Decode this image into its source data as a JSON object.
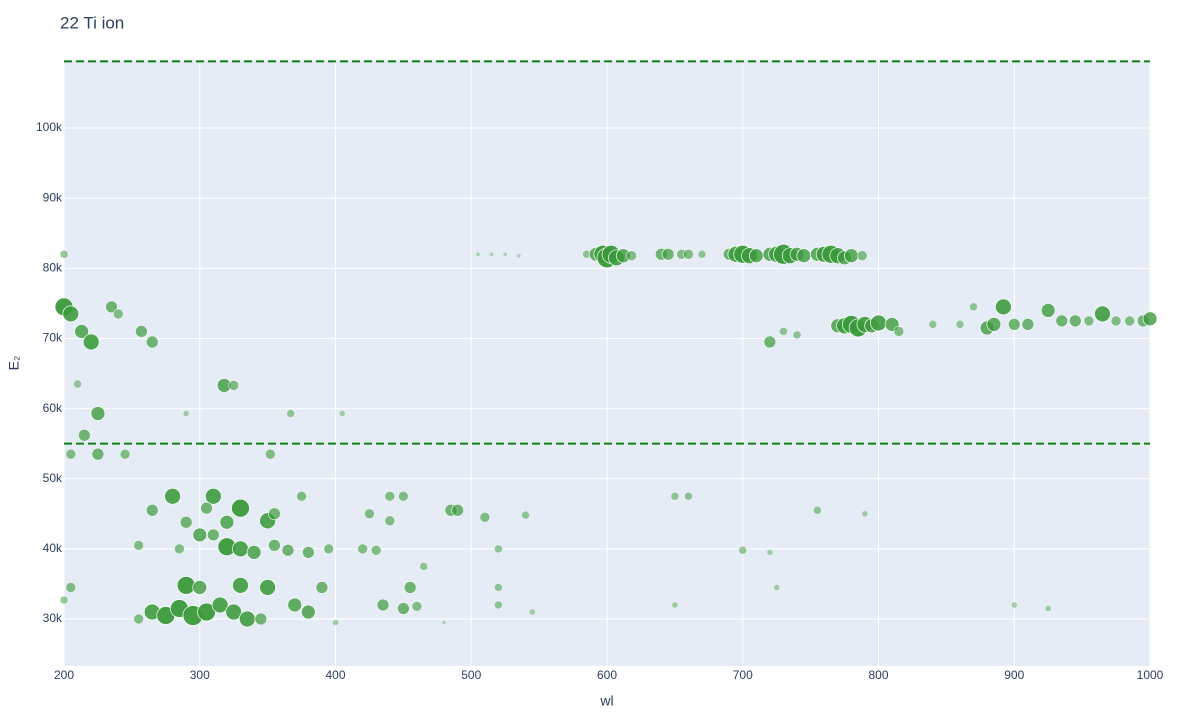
{
  "chart_data": {
    "type": "scatter",
    "title": "22 Ti ion",
    "x_label": "wl",
    "y_label": "E₂",
    "color": "#3a9a3a",
    "hlines": [
      109500,
      55000
    ],
    "hline_color": "#138013",
    "grid": true,
    "xlim": [
      200,
      1000
    ],
    "ylim": [
      23300,
      109700
    ],
    "xticks": [
      200,
      300,
      400,
      500,
      600,
      700,
      800,
      900,
      1000
    ],
    "yticks": [
      {
        "value": 30000,
        "label": "30k"
      },
      {
        "value": 40000,
        "label": "40k"
      },
      {
        "value": 50000,
        "label": "50k"
      },
      {
        "value": 60000,
        "label": "60k"
      },
      {
        "value": 70000,
        "label": "70k"
      },
      {
        "value": 80000,
        "label": "80k"
      },
      {
        "value": 90000,
        "label": "90k"
      },
      {
        "value": 100000,
        "label": "100k"
      }
    ],
    "x": [
      585,
      592,
      597,
      600,
      603,
      607,
      612,
      618,
      640,
      645,
      655,
      660,
      670,
      690,
      695,
      700,
      705,
      710,
      720,
      725,
      730,
      735,
      740,
      745,
      755,
      760,
      765,
      770,
      775,
      780,
      788,
      505,
      515,
      525,
      535,
      770,
      775,
      780,
      785,
      790,
      795,
      800,
      810,
      815,
      840,
      860,
      870,
      880,
      885,
      892,
      900,
      910,
      925,
      935,
      945,
      955,
      965,
      975,
      985,
      995,
      1000,
      720,
      730,
      740,
      200,
      205,
      213,
      220,
      235,
      240,
      257,
      265,
      210,
      318,
      325,
      225,
      290,
      367,
      405,
      215,
      200,
      205,
      225,
      245,
      352,
      280,
      310,
      375,
      440,
      450,
      330,
      305,
      265,
      290,
      320,
      350,
      355,
      425,
      440,
      485,
      490,
      510,
      540,
      650,
      660,
      755,
      790,
      300,
      310,
      320,
      330,
      340,
      355,
      365,
      380,
      395,
      420,
      430,
      255,
      285,
      520,
      700,
      720,
      465,
      290,
      300,
      330,
      350,
      390,
      455,
      520,
      725,
      265,
      275,
      285,
      295,
      305,
      315,
      325,
      335,
      345,
      370,
      380,
      435,
      450,
      460,
      520,
      545,
      650,
      900,
      925,
      205,
      200,
      255,
      400,
      480
    ],
    "values": [
      82000,
      82000,
      82000,
      81500,
      82000,
      81500,
      81800,
      81800,
      82000,
      82000,
      82000,
      82000,
      82000,
      82000,
      82000,
      82000,
      81800,
      81800,
      82000,
      82000,
      82000,
      81800,
      82000,
      81800,
      82000,
      82000,
      82000,
      81800,
      81500,
      81800,
      81800,
      82000,
      82000,
      82000,
      81800,
      71800,
      71800,
      72000,
      71500,
      72000,
      71800,
      72200,
      72000,
      71000,
      72000,
      72000,
      74500,
      71500,
      72000,
      74500,
      72000,
      72000,
      74000,
      72500,
      72500,
      72500,
      73500,
      72500,
      72500,
      72500,
      72800,
      69500,
      71000,
      70500,
      74500,
      73500,
      71000,
      69500,
      74500,
      73500,
      71000,
      69500,
      63500,
      63300,
      63300,
      59300,
      59300,
      59300,
      59300,
      56200,
      82000,
      53500,
      53500,
      53500,
      53500,
      47500,
      47500,
      47500,
      47500,
      47500,
      45800,
      45800,
      45500,
      43800,
      43800,
      44000,
      45000,
      45000,
      44000,
      45500,
      45500,
      44500,
      44800,
      47500,
      47500,
      45500,
      45000,
      42000,
      42000,
      40300,
      40000,
      39500,
      40500,
      39800,
      39500,
      40000,
      40000,
      39800,
      40500,
      40000,
      40000,
      39800,
      39500,
      37500,
      34800,
      34500,
      34800,
      34500,
      34500,
      34500,
      34500,
      34500,
      31000,
      30500,
      31500,
      30500,
      31000,
      32000,
      31000,
      30000,
      30000,
      32000,
      31000,
      32000,
      31500,
      31800,
      32000,
      31000,
      32000,
      32000,
      31500,
      34500,
      32700,
      30000,
      29500,
      29500
    ],
    "sizes": [
      8,
      14,
      18,
      20,
      18,
      16,
      14,
      10,
      12,
      12,
      10,
      10,
      8,
      12,
      16,
      18,
      16,
      14,
      14,
      16,
      20,
      16,
      14,
      14,
      14,
      16,
      18,
      16,
      14,
      14,
      10,
      4,
      4,
      4,
      4,
      14,
      16,
      18,
      18,
      16,
      14,
      16,
      14,
      10,
      8,
      8,
      8,
      14,
      14,
      16,
      12,
      12,
      14,
      12,
      12,
      10,
      16,
      10,
      10,
      12,
      14,
      12,
      8,
      8,
      18,
      16,
      14,
      16,
      12,
      10,
      12,
      12,
      8,
      14,
      10,
      14,
      6,
      8,
      6,
      12,
      8,
      10,
      12,
      10,
      10,
      16,
      16,
      10,
      10,
      10,
      18,
      12,
      12,
      12,
      14,
      16,
      12,
      10,
      10,
      12,
      12,
      10,
      8,
      8,
      8,
      8,
      6,
      14,
      12,
      18,
      16,
      14,
      12,
      12,
      12,
      10,
      10,
      10,
      10,
      10,
      8,
      8,
      6,
      8,
      18,
      14,
      16,
      16,
      12,
      12,
      8,
      6,
      16,
      18,
      18,
      20,
      18,
      16,
      16,
      16,
      12,
      14,
      14,
      12,
      12,
      10,
      8,
      6,
      6,
      6,
      6,
      10,
      8,
      10,
      6,
      4
    ]
  }
}
